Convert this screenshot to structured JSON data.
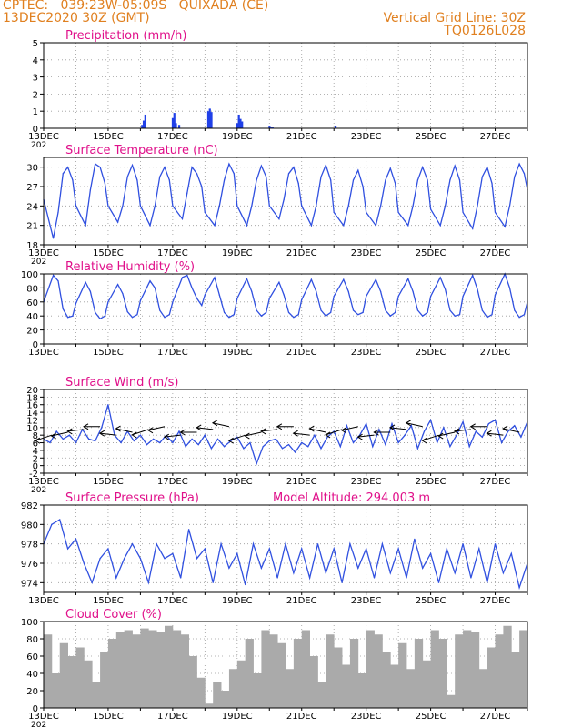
{
  "header": {
    "line1": "CPTEC:   039:23W-05:09S   QUIXADA (CE)",
    "line2": "13DEC2020 30Z (GMT)",
    "vgrid": "Vertical Grid Line: 30Z",
    "code": "TQ0126L028"
  },
  "colors": {
    "header": "#e08020",
    "title": "#e0108a",
    "line": "#3050e0",
    "bar": "#2040e8",
    "cloud": "#aaaaaa",
    "grid": "#9a9a9a"
  },
  "chart_data": [
    {
      "type": "bar",
      "title": "Precipitation (mm/h)",
      "ylim": [
        0,
        5
      ],
      "yticks": [
        0,
        1,
        2,
        3,
        4,
        5
      ],
      "x_label_prefix": "202",
      "xticks": [
        "13DEC",
        "15DEC",
        "17DEC",
        "19DEC",
        "21DEC",
        "23DEC",
        "25DEC",
        "27DEC"
      ],
      "x": [
        3.05,
        3.1,
        3.15,
        4.0,
        4.05,
        4.1,
        4.2,
        5.1,
        5.15,
        5.2,
        6.0,
        6.05,
        6.1,
        6.15,
        7.0,
        7.05,
        7.1,
        9.05
      ],
      "values": [
        0.2,
        0.45,
        0.8,
        0.6,
        0.9,
        0.3,
        0.2,
        1.0,
        1.15,
        0.95,
        0.3,
        0.8,
        0.55,
        0.4,
        0.1,
        0.05,
        0.05,
        0.15
      ]
    },
    {
      "type": "line",
      "title": "Surface Temperature (nC)",
      "ylim": [
        18,
        31.5
      ],
      "yticks": [
        18,
        21,
        24,
        27,
        30
      ],
      "x_label_prefix": "202",
      "xticks": [
        "13DEC",
        "15DEC",
        "17DEC",
        "19DEC",
        "21DEC",
        "23DEC",
        "25DEC",
        "27DEC"
      ],
      "x": [
        0.0,
        0.3,
        0.45,
        0.6,
        0.75,
        0.9,
        1.0,
        1.3,
        1.45,
        1.6,
        1.75,
        1.9,
        2.0,
        2.3,
        2.45,
        2.6,
        2.75,
        2.9,
        3.0,
        3.3,
        3.45,
        3.6,
        3.75,
        3.9,
        4.0,
        4.3,
        4.45,
        4.6,
        4.75,
        4.9,
        5.0,
        5.3,
        5.45,
        5.6,
        5.75,
        5.9,
        6.0,
        6.3,
        6.45,
        6.6,
        6.75,
        6.9,
        7.0,
        7.3,
        7.45,
        7.6,
        7.75,
        7.9,
        8.0,
        8.3,
        8.45,
        8.6,
        8.75,
        8.9,
        9.0,
        9.3,
        9.45,
        9.6,
        9.75,
        9.9,
        10.0,
        10.3,
        10.45,
        10.6,
        10.75,
        10.9,
        11.0,
        11.3,
        11.45,
        11.6,
        11.75,
        11.9,
        12.0,
        12.3,
        12.45,
        12.6,
        12.75,
        12.9,
        13.0,
        13.3,
        13.45,
        13.6,
        13.75,
        13.9,
        14.0,
        14.3,
        14.45,
        14.6,
        14.75,
        14.9,
        15.0
      ],
      "values": [
        25.0,
        19.0,
        23.0,
        29.0,
        30.0,
        28.0,
        24.0,
        21.0,
        26.5,
        30.5,
        30.0,
        27.5,
        24.0,
        21.5,
        24.0,
        28.5,
        30.3,
        28.0,
        24.0,
        21.0,
        24.0,
        28.5,
        30.0,
        28.0,
        24.0,
        22.0,
        26.0,
        30.0,
        29.0,
        27.0,
        23.0,
        21.0,
        24.0,
        28.0,
        30.5,
        29.0,
        24.0,
        21.0,
        24.0,
        28.0,
        30.2,
        28.5,
        24.0,
        22.0,
        25.0,
        29.0,
        30.0,
        27.5,
        24.0,
        21.0,
        24.0,
        28.5,
        30.3,
        28.0,
        23.0,
        21.0,
        24.0,
        28.0,
        29.5,
        27.0,
        23.0,
        21.0,
        24.0,
        28.0,
        29.8,
        27.5,
        23.0,
        21.0,
        24.0,
        28.0,
        30.0,
        28.0,
        23.5,
        21.0,
        24.0,
        28.0,
        30.2,
        28.0,
        23.0,
        20.5,
        24.0,
        28.5,
        30.0,
        27.5,
        23.0,
        20.8,
        24.0,
        28.5,
        30.5,
        29.0,
        26.5
      ]
    },
    {
      "type": "line",
      "title": "Relative Humidity (%)",
      "ylim": [
        0,
        100
      ],
      "yticks": [
        0,
        20,
        40,
        60,
        80,
        100
      ],
      "xticks": [
        "13DEC",
        "15DEC",
        "17DEC",
        "19DEC",
        "21DEC",
        "23DEC",
        "25DEC",
        "27DEC"
      ],
      "x": [
        0.0,
        0.3,
        0.45,
        0.6,
        0.75,
        0.9,
        1.0,
        1.3,
        1.45,
        1.6,
        1.75,
        1.9,
        2.0,
        2.3,
        2.45,
        2.6,
        2.75,
        2.9,
        3.0,
        3.3,
        3.45,
        3.6,
        3.75,
        3.9,
        4.0,
        4.3,
        4.45,
        4.6,
        4.75,
        4.9,
        5.0,
        5.3,
        5.45,
        5.6,
        5.75,
        5.9,
        6.0,
        6.3,
        6.45,
        6.6,
        6.75,
        6.9,
        7.0,
        7.3,
        7.45,
        7.6,
        7.75,
        7.9,
        8.0,
        8.3,
        8.45,
        8.6,
        8.75,
        8.9,
        9.0,
        9.3,
        9.45,
        9.6,
        9.75,
        9.9,
        10.0,
        10.3,
        10.45,
        10.6,
        10.75,
        10.9,
        11.0,
        11.3,
        11.45,
        11.6,
        11.75,
        11.9,
        12.0,
        12.3,
        12.45,
        12.6,
        12.75,
        12.9,
        13.0,
        13.3,
        13.45,
        13.6,
        13.75,
        13.9,
        14.0,
        14.3,
        14.45,
        14.6,
        14.75,
        14.9,
        15.0
      ],
      "values": [
        60.0,
        98.0,
        90.0,
        50.0,
        38.0,
        40.0,
        58.0,
        88.0,
        75.0,
        45.0,
        36.0,
        40.0,
        60.0,
        85.0,
        72.0,
        46.0,
        38.0,
        42.0,
        62.0,
        90.0,
        80.0,
        48.0,
        38.0,
        42.0,
        60.0,
        95.0,
        98.0,
        80.0,
        65.0,
        55.0,
        70.0,
        95.0,
        70.0,
        45.0,
        38.0,
        42.0,
        65.0,
        93.0,
        75.0,
        48.0,
        40.0,
        45.0,
        65.0,
        88.0,
        70.0,
        45.0,
        38.0,
        42.0,
        63.0,
        92.0,
        75.0,
        48.0,
        40.0,
        45.0,
        68.0,
        92.0,
        75.0,
        48.0,
        42.0,
        45.0,
        68.0,
        92.0,
        75.0,
        48.0,
        40.0,
        45.0,
        68.0,
        93.0,
        75.0,
        48.0,
        40.0,
        45.0,
        68.0,
        95.0,
        78.0,
        48.0,
        40.0,
        42.0,
        68.0,
        98.0,
        78.0,
        48.0,
        38.0,
        42.0,
        70.0,
        100.0,
        80.0,
        48.0,
        38.0,
        42.0,
        60.0
      ]
    },
    {
      "type": "line",
      "title": "Surface Wind (m/s)",
      "ylim": [
        -2,
        20
      ],
      "yticks": [
        -2,
        0,
        2,
        4,
        6,
        8,
        10,
        12,
        14,
        16,
        18,
        20
      ],
      "x_label_prefix": "202",
      "xticks": [
        "13DEC",
        "15DEC",
        "17DEC",
        "19DEC",
        "21DEC",
        "23DEC",
        "25DEC",
        "27DEC"
      ],
      "x": [
        0.0,
        0.2,
        0.4,
        0.6,
        0.8,
        1.0,
        1.2,
        1.4,
        1.6,
        1.8,
        2.0,
        2.2,
        2.4,
        2.6,
        2.8,
        3.0,
        3.2,
        3.4,
        3.6,
        3.8,
        4.0,
        4.2,
        4.4,
        4.6,
        4.8,
        5.0,
        5.2,
        5.4,
        5.6,
        5.8,
        6.0,
        6.2,
        6.4,
        6.6,
        6.8,
        7.0,
        7.2,
        7.4,
        7.6,
        7.8,
        8.0,
        8.2,
        8.4,
        8.6,
        8.8,
        9.0,
        9.2,
        9.4,
        9.6,
        9.8,
        10.0,
        10.2,
        10.4,
        10.6,
        10.8,
        11.0,
        11.2,
        11.4,
        11.6,
        11.8,
        12.0,
        12.2,
        12.4,
        12.6,
        12.8,
        13.0,
        13.2,
        13.4,
        13.6,
        13.8,
        14.0,
        14.2,
        14.4,
        14.6,
        14.8,
        15.0
      ],
      "values": [
        7.0,
        6.0,
        9.0,
        7.0,
        8.0,
        6.0,
        9.5,
        7.0,
        6.5,
        10.0,
        16.0,
        8.0,
        6.0,
        9.0,
        6.5,
        8.0,
        5.5,
        7.0,
        6.0,
        8.0,
        6.0,
        9.0,
        5.0,
        7.0,
        5.5,
        8.0,
        4.5,
        7.0,
        5.0,
        6.5,
        7.5,
        4.5,
        6.0,
        0.5,
        5.0,
        6.5,
        7.0,
        4.5,
        5.5,
        3.5,
        6.0,
        5.0,
        8.0,
        4.5,
        7.5,
        9.0,
        5.0,
        10.5,
        6.0,
        8.0,
        11.0,
        5.0,
        9.5,
        5.5,
        11.0,
        6.0,
        8.0,
        10.5,
        4.5,
        9.0,
        12.0,
        6.0,
        10.0,
        5.0,
        8.0,
        11.5,
        5.0,
        9.0,
        7.5,
        11.0,
        12.0,
        6.0,
        9.0,
        10.5,
        7.5,
        11.5
      ]
    },
    {
      "type": "line",
      "title": "Surface Pressure (hPa)",
      "annotation": "Model Altitude: 294.003 m",
      "ylim": [
        973,
        982
      ],
      "yticks": [
        974,
        976,
        978,
        980,
        982
      ],
      "xticks": [
        "13DEC",
        "15DEC",
        "17DEC",
        "19DEC",
        "21DEC",
        "23DEC",
        "25DEC",
        "27DEC"
      ],
      "x": [
        0.0,
        0.25,
        0.5,
        0.75,
        1.0,
        1.25,
        1.5,
        1.75,
        2.0,
        2.25,
        2.5,
        2.75,
        3.0,
        3.25,
        3.5,
        3.75,
        4.0,
        4.25,
        4.5,
        4.75,
        5.0,
        5.25,
        5.5,
        5.75,
        6.0,
        6.25,
        6.5,
        6.75,
        7.0,
        7.25,
        7.5,
        7.75,
        8.0,
        8.25,
        8.5,
        8.75,
        9.0,
        9.25,
        9.5,
        9.75,
        10.0,
        10.25,
        10.5,
        10.75,
        11.0,
        11.25,
        11.5,
        11.75,
        12.0,
        12.25,
        12.5,
        12.75,
        13.0,
        13.25,
        13.5,
        13.75,
        14.0,
        14.25,
        14.5,
        14.75,
        15.0
      ],
      "values": [
        978.0,
        980.0,
        980.5,
        977.5,
        978.5,
        976.0,
        974.0,
        976.5,
        977.5,
        974.5,
        976.5,
        978.0,
        976.5,
        974.0,
        978.0,
        976.5,
        977.0,
        974.5,
        979.5,
        976.5,
        977.5,
        974.0,
        978.0,
        975.5,
        977.0,
        973.8,
        978.0,
        975.5,
        977.5,
        974.5,
        978.0,
        975.0,
        977.5,
        974.5,
        978.0,
        975.0,
        977.5,
        974.0,
        978.0,
        975.5,
        977.5,
        974.5,
        978.0,
        975.0,
        977.5,
        974.5,
        978.5,
        975.5,
        977.0,
        974.0,
        977.5,
        975.0,
        978.0,
        974.5,
        977.5,
        974.0,
        978.0,
        975.0,
        977.0,
        973.5,
        976.0
      ]
    },
    {
      "type": "bar",
      "title": "Cloud Cover (%)",
      "ylim": [
        0,
        100
      ],
      "yticks": [
        0,
        20,
        40,
        60,
        80,
        100
      ],
      "x_label_prefix": "202",
      "xticks": [
        "13DEC",
        "15DEC",
        "17DEC",
        "19DEC",
        "21DEC",
        "23DEC",
        "25DEC",
        "27DEC"
      ],
      "x": [
        0.0,
        0.25,
        0.5,
        0.75,
        1.0,
        1.25,
        1.5,
        1.75,
        2.0,
        2.25,
        2.5,
        2.75,
        3.0,
        3.25,
        3.5,
        3.75,
        4.0,
        4.25,
        4.5,
        4.75,
        5.0,
        5.25,
        5.5,
        5.75,
        6.0,
        6.25,
        6.5,
        6.75,
        7.0,
        7.25,
        7.5,
        7.75,
        8.0,
        8.25,
        8.5,
        8.75,
        9.0,
        9.25,
        9.5,
        9.75,
        10.0,
        10.25,
        10.5,
        10.75,
        11.0,
        11.25,
        11.5,
        11.75,
        12.0,
        12.25,
        12.5,
        12.75,
        13.0,
        13.25,
        13.5,
        13.75,
        14.0,
        14.25,
        14.5,
        14.75
      ],
      "values": [
        85,
        40,
        75,
        60,
        70,
        55,
        30,
        65,
        80,
        88,
        90,
        85,
        92,
        90,
        88,
        95,
        90,
        85,
        60,
        35,
        5,
        30,
        20,
        45,
        55,
        80,
        40,
        90,
        85,
        75,
        45,
        80,
        90,
        60,
        30,
        85,
        70,
        50,
        80,
        40,
        90,
        85,
        65,
        50,
        75,
        45,
        80,
        55,
        90,
        80,
        15,
        85,
        90,
        88,
        45,
        70,
        85,
        95,
        65,
        90
      ]
    }
  ]
}
